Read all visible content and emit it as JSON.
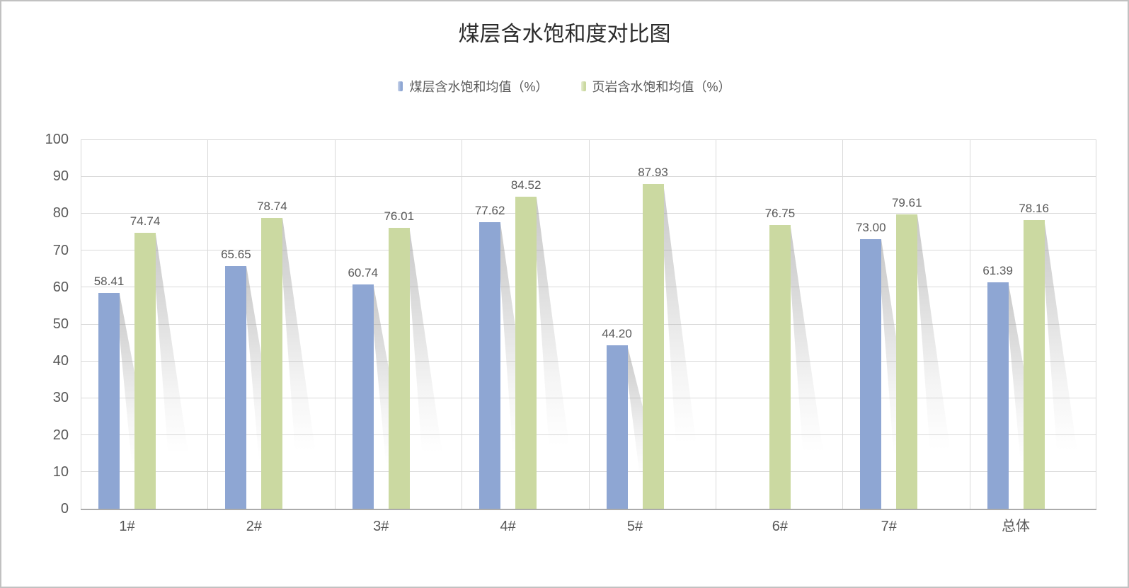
{
  "title_block": {
    "title": "煤层含水饱和度对比图"
  },
  "style": {
    "series1_color": "#8ea6d3",
    "series2_color": "#cbd9a1",
    "gridline_color": "#d9d9d9",
    "axis_line_color": "#ababab",
    "tick_label_color": "#595959",
    "data_label_color": "#595959",
    "title_color": "#2b2b2b",
    "frame_border_color": "#c1c1c1",
    "background": "#ffffff",
    "shadow_color": "#c6c6c6"
  },
  "chart_data": {
    "type": "bar",
    "title": "煤层含水饱和度对比图",
    "categories": [
      "1#",
      "2#",
      "3#",
      "4#",
      "5#",
      "6#",
      "7#",
      "总体"
    ],
    "series": [
      {
        "name": "煤层含水饱和均值（%）",
        "color": "#8ea6d3",
        "values": [
          58.41,
          65.65,
          60.74,
          77.62,
          44.2,
          null,
          73.0,
          61.39
        ]
      },
      {
        "name": "页岩含水饱和均值（%）",
        "color": "#cbd9a1",
        "values": [
          74.74,
          78.74,
          76.01,
          84.52,
          87.93,
          76.75,
          79.61,
          78.16
        ]
      }
    ],
    "xlabel": "",
    "ylabel": "",
    "ylim": [
      0,
      100
    ],
    "yticks": [
      0,
      10,
      20,
      30,
      40,
      50,
      60,
      70,
      80,
      90,
      100
    ],
    "grid": true,
    "vertical_category_gridlines": true,
    "legend_position": "top",
    "data_labels": true,
    "value_decimals": 2
  }
}
